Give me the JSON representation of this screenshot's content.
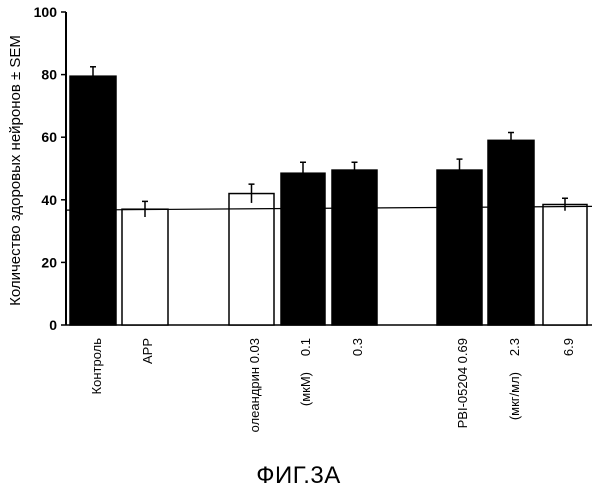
{
  "chart_data": {
    "type": "bar",
    "ylabel": "Количество здоровых нейронов ± SEM",
    "ylim": [
      0,
      100
    ],
    "yticks": [
      "0",
      "20",
      "40",
      "60",
      "80",
      "100"
    ],
    "categories": [
      "Контроль",
      "APP",
      "олеандрин 0.03",
      "0.1",
      "0.3",
      "PBI-05204  0.69",
      "2.3",
      "6.9"
    ],
    "unit_labels": [
      "(мкМ)",
      "(мкг/мл)"
    ],
    "values": [
      79.5,
      37,
      42,
      48.5,
      49.5,
      49.5,
      59,
      38.5
    ],
    "errors": [
      3,
      2.5,
      3,
      3.5,
      2.5,
      3.5,
      2.5,
      2
    ],
    "fills": [
      "black",
      "white",
      "white",
      "black",
      "black",
      "black",
      "black",
      "white"
    ],
    "reference_line": 37.5,
    "grid": false
  },
  "caption": "ФИГ.3А"
}
